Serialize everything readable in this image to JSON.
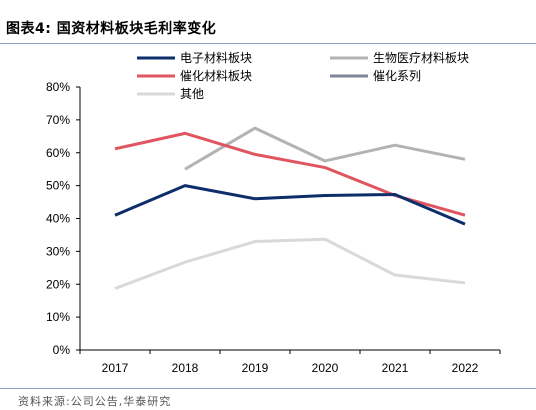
{
  "figure": {
    "title": "图表4:  国资材料板块毛利率变化",
    "source": "资料来源:公司公告,华泰研究"
  },
  "chart_data": {
    "type": "line",
    "x": [
      "2017",
      "2018",
      "2019",
      "2020",
      "2021",
      "2022"
    ],
    "y_ticks": [
      "0%",
      "10%",
      "20%",
      "30%",
      "40%",
      "50%",
      "60%",
      "70%",
      "80%"
    ],
    "ylim": [
      0,
      80
    ],
    "grid": false,
    "legend_position": "top",
    "series": [
      {
        "name": "电子材料板块",
        "color": "#0d2d6b",
        "values": [
          41,
          50,
          46,
          47,
          47.3,
          38.3
        ]
      },
      {
        "name": "生物医疗材料板块",
        "color": "#b3b3b3",
        "values": [
          null,
          55,
          67.5,
          57.5,
          62.3,
          58
        ]
      },
      {
        "name": "催化材料板块",
        "color": "#e0555f",
        "values": [
          61.2,
          65.9,
          59.5,
          55.5,
          47,
          41
        ]
      },
      {
        "name": "催化系列",
        "color": "#7f8797",
        "values": [
          null,
          null,
          null,
          null,
          null,
          null
        ]
      },
      {
        "name": "其他",
        "color": "#d9d9d9",
        "values": [
          18.7,
          26.7,
          33,
          33.7,
          22.8,
          20.4
        ]
      }
    ]
  }
}
